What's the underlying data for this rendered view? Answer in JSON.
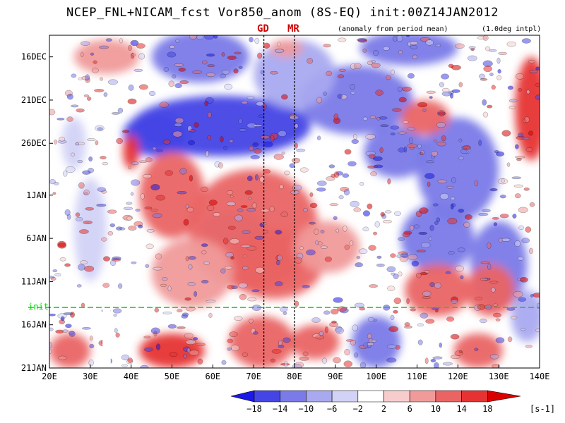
{
  "header": {
    "title": "NCEP_FNL+NICAM_fcst Vor850_anom (8S-EQ) init:00Z14JAN2012",
    "note_anomaly": "(anomaly from period mean)",
    "note_intpl": "(1.0deg intpl)",
    "marker_gd": "GD",
    "marker_mr": "MR"
  },
  "chart_data": {
    "type": "heatmap",
    "title": "NCEP_FNL+NICAM_fcst Vor850_anom (8S-EQ) init:00Z14JAN2012",
    "x_ticks": [
      "20E",
      "30E",
      "40E",
      "50E",
      "60E",
      "70E",
      "80E",
      "90E",
      "100E",
      "110E",
      "120E",
      "130E",
      "140E"
    ],
    "x_values": [
      20,
      30,
      40,
      50,
      60,
      70,
      80,
      90,
      100,
      110,
      120,
      130,
      140
    ],
    "xlim": [
      20,
      140
    ],
    "y_ticks": [
      "16DEC",
      "21DEC",
      "26DEC",
      "1JAN",
      "6JAN",
      "11JAN",
      "16JAN",
      "21JAN"
    ],
    "y_days": [
      0,
      5,
      10,
      16,
      21,
      26,
      31,
      36
    ],
    "ylim_days": [
      -2.5,
      36
    ],
    "init_label": "init",
    "init_day": 29,
    "reference_lines": [
      {
        "name": "GD",
        "lon": 72.5
      },
      {
        "name": "MR",
        "lon": 80
      }
    ],
    "missing_band_lon": [
      33,
      35
    ],
    "colorbar": {
      "levels": [
        -18,
        -14,
        -10,
        -6,
        -2,
        2,
        6,
        10,
        14,
        18
      ],
      "labels": [
        "−18",
        "−14",
        "−10",
        "−6",
        "−2",
        "2",
        "6",
        "10",
        "14",
        "18"
      ],
      "colors": [
        "#1a1ae6",
        "#4545e6",
        "#7a7ae8",
        "#a9a9f0",
        "#d2d2f7",
        "#ffffff",
        "#f7cccc",
        "#f09a9a",
        "#ea6464",
        "#e63232",
        "#d90000"
      ],
      "unit": "[s-1]"
    },
    "blobs": [
      {
        "lon": 62,
        "day": 8,
        "rx": 22,
        "ry": 3.5,
        "value": -18
      },
      {
        "lon": 46,
        "day": 9,
        "rx": 8,
        "ry": 2.5,
        "value": -16
      },
      {
        "lon": 95,
        "day": 5,
        "rx": 14,
        "ry": 4,
        "value": -14
      },
      {
        "lon": 80,
        "day": 2,
        "rx": 10,
        "ry": 4,
        "value": -10
      },
      {
        "lon": 57,
        "day": 0,
        "rx": 12,
        "ry": 3,
        "value": -12
      },
      {
        "lon": 120,
        "day": 13,
        "rx": 10,
        "ry": 6,
        "value": -12
      },
      {
        "lon": 105,
        "day": 11,
        "rx": 8,
        "ry": 3,
        "value": -12
      },
      {
        "lon": 130,
        "day": 24,
        "rx": 7,
        "ry": 5,
        "value": -14
      },
      {
        "lon": 115,
        "day": 21,
        "rx": 9,
        "ry": 4,
        "value": -12
      },
      {
        "lon": 100,
        "day": 33,
        "rx": 6,
        "ry": 3,
        "value": -12
      },
      {
        "lon": 108,
        "day": -1,
        "rx": 12,
        "ry": 2,
        "value": -12
      },
      {
        "lon": 65,
        "day": 20,
        "rx": 8,
        "ry": 2,
        "value": -8
      },
      {
        "lon": 30,
        "day": 20,
        "rx": 4,
        "ry": 6,
        "value": -6
      },
      {
        "lon": 26,
        "day": 10,
        "rx": 3,
        "ry": 3,
        "value": -6
      },
      {
        "lon": 137,
        "day": 30,
        "rx": 4,
        "ry": 3,
        "value": -10
      },
      {
        "lon": 70,
        "day": 20,
        "rx": 16,
        "ry": 7,
        "value": 10
      },
      {
        "lon": 50,
        "day": 16,
        "rx": 8,
        "ry": 5,
        "value": 10
      },
      {
        "lon": 75,
        "day": 24,
        "rx": 12,
        "ry": 4,
        "value": 12
      },
      {
        "lon": 55,
        "day": 25,
        "rx": 10,
        "ry": 4,
        "value": 8
      },
      {
        "lon": 88,
        "day": 22,
        "rx": 8,
        "ry": 3,
        "value": 8
      },
      {
        "lon": 40,
        "day": 11,
        "rx": 2,
        "ry": 2,
        "value": 14
      },
      {
        "lon": 50,
        "day": 34,
        "rx": 8,
        "ry": 2,
        "value": 16
      },
      {
        "lon": 72,
        "day": 33,
        "rx": 8,
        "ry": 3,
        "value": 10
      },
      {
        "lon": 85,
        "day": 33,
        "rx": 6,
        "ry": 2,
        "value": 10
      },
      {
        "lon": 25,
        "day": 34,
        "rx": 5,
        "ry": 2,
        "value": 12
      },
      {
        "lon": 115,
        "day": 27,
        "rx": 8,
        "ry": 3,
        "value": 10
      },
      {
        "lon": 128,
        "day": 27,
        "rx": 6,
        "ry": 3,
        "value": 10
      },
      {
        "lon": 112,
        "day": 7,
        "rx": 6,
        "ry": 2,
        "value": 12
      },
      {
        "lon": 138,
        "day": 6,
        "rx": 4,
        "ry": 6,
        "value": 14
      },
      {
        "lon": 125,
        "day": 34,
        "rx": 6,
        "ry": 2,
        "value": 10
      },
      {
        "lon": 34,
        "day": 0,
        "rx": 8,
        "ry": 2,
        "value": 6
      },
      {
        "lon": 78,
        "day": -1,
        "rx": 4,
        "ry": 1,
        "value": 8
      }
    ]
  }
}
